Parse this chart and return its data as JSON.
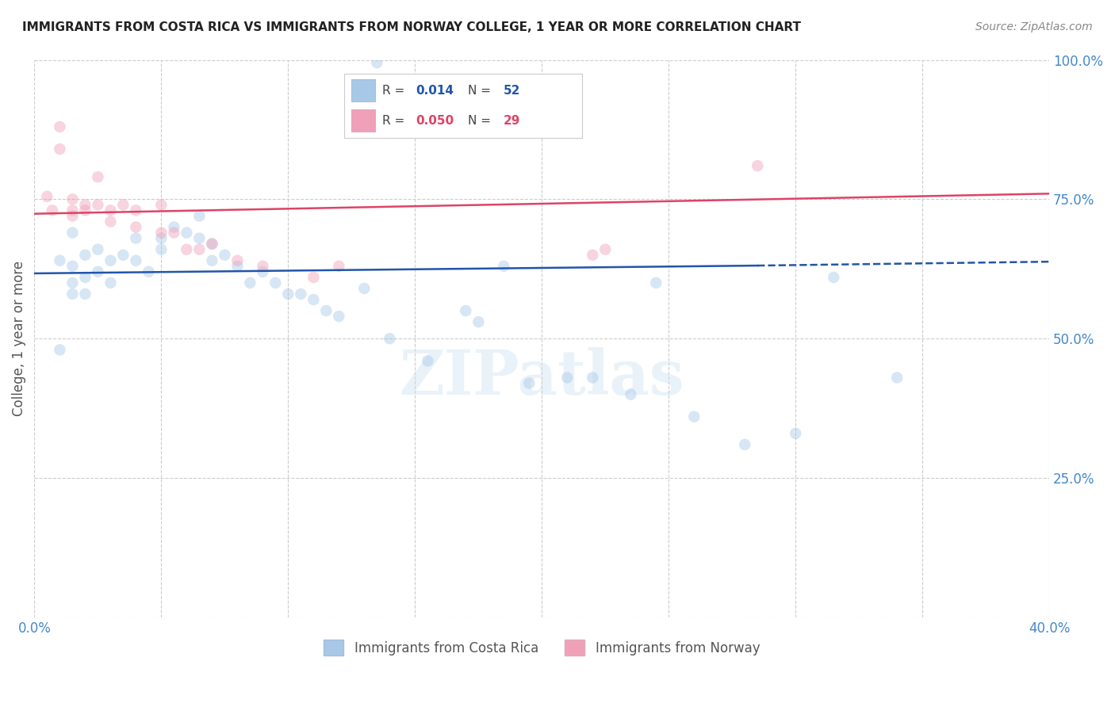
{
  "title": "IMMIGRANTS FROM COSTA RICA VS IMMIGRANTS FROM NORWAY COLLEGE, 1 YEAR OR MORE CORRELATION CHART",
  "source": "Source: ZipAtlas.com",
  "ylabel": "College, 1 year or more",
  "x_min": 0.0,
  "x_max": 0.4,
  "y_min": 0.0,
  "y_max": 1.0,
  "x_ticks": [
    0.0,
    0.05,
    0.1,
    0.15,
    0.2,
    0.25,
    0.3,
    0.35,
    0.4
  ],
  "y_ticks": [
    0.0,
    0.25,
    0.5,
    0.75,
    1.0
  ],
  "y_tick_labels": [
    "",
    "25.0%",
    "50.0%",
    "75.0%",
    "100.0%"
  ],
  "blue_scatter_x": [
    0.015,
    0.135,
    0.015,
    0.015,
    0.015,
    0.02,
    0.02,
    0.02,
    0.025,
    0.025,
    0.03,
    0.03,
    0.035,
    0.04,
    0.04,
    0.045,
    0.05,
    0.05,
    0.055,
    0.06,
    0.065,
    0.065,
    0.07,
    0.07,
    0.075,
    0.08,
    0.085,
    0.09,
    0.095,
    0.1,
    0.105,
    0.11,
    0.115,
    0.12,
    0.13,
    0.14,
    0.155,
    0.17,
    0.175,
    0.185,
    0.195,
    0.21,
    0.22,
    0.235,
    0.245,
    0.26,
    0.28,
    0.3,
    0.315,
    0.34,
    0.01,
    0.01
  ],
  "blue_scatter_y": [
    0.69,
    0.995,
    0.63,
    0.6,
    0.58,
    0.65,
    0.61,
    0.58,
    0.66,
    0.62,
    0.64,
    0.6,
    0.65,
    0.68,
    0.64,
    0.62,
    0.68,
    0.66,
    0.7,
    0.69,
    0.72,
    0.68,
    0.67,
    0.64,
    0.65,
    0.63,
    0.6,
    0.62,
    0.6,
    0.58,
    0.58,
    0.57,
    0.55,
    0.54,
    0.59,
    0.5,
    0.46,
    0.55,
    0.53,
    0.63,
    0.42,
    0.43,
    0.43,
    0.4,
    0.6,
    0.36,
    0.31,
    0.33,
    0.61,
    0.43,
    0.64,
    0.48
  ],
  "pink_scatter_x": [
    0.005,
    0.007,
    0.01,
    0.01,
    0.015,
    0.015,
    0.015,
    0.02,
    0.02,
    0.025,
    0.025,
    0.03,
    0.03,
    0.035,
    0.04,
    0.04,
    0.05,
    0.05,
    0.055,
    0.06,
    0.065,
    0.07,
    0.08,
    0.09,
    0.11,
    0.12,
    0.22,
    0.225,
    0.285
  ],
  "pink_scatter_y": [
    0.755,
    0.73,
    0.88,
    0.84,
    0.75,
    0.73,
    0.72,
    0.74,
    0.73,
    0.79,
    0.74,
    0.73,
    0.71,
    0.74,
    0.73,
    0.7,
    0.74,
    0.69,
    0.69,
    0.66,
    0.66,
    0.67,
    0.64,
    0.63,
    0.61,
    0.63,
    0.65,
    0.66,
    0.81
  ],
  "blue_line_x0": 0.0,
  "blue_line_x1": 0.285,
  "blue_line_x2": 0.4,
  "blue_line_y0": 0.617,
  "blue_line_y1": 0.631,
  "blue_line_y2": 0.638,
  "pink_line_x0": 0.0,
  "pink_line_x1": 0.4,
  "pink_line_y0": 0.724,
  "pink_line_y1": 0.76,
  "scatter_size": 110,
  "scatter_alpha": 0.45,
  "blue_color": "#a8c8e8",
  "pink_color": "#f0a0b8",
  "blue_line_color": "#2255aa",
  "pink_line_color": "#dd4466",
  "background_color": "#ffffff",
  "grid_color": "#cccccc",
  "title_color": "#222222",
  "axis_color": "#4488cc",
  "watermark": "ZIPatlas",
  "legend_blue_R": "0.014",
  "legend_blue_N": "52",
  "legend_pink_R": "0.050",
  "legend_pink_N": "29",
  "legend_label_blue": "Immigrants from Costa Rica",
  "legend_label_pink": "Immigrants from Norway"
}
